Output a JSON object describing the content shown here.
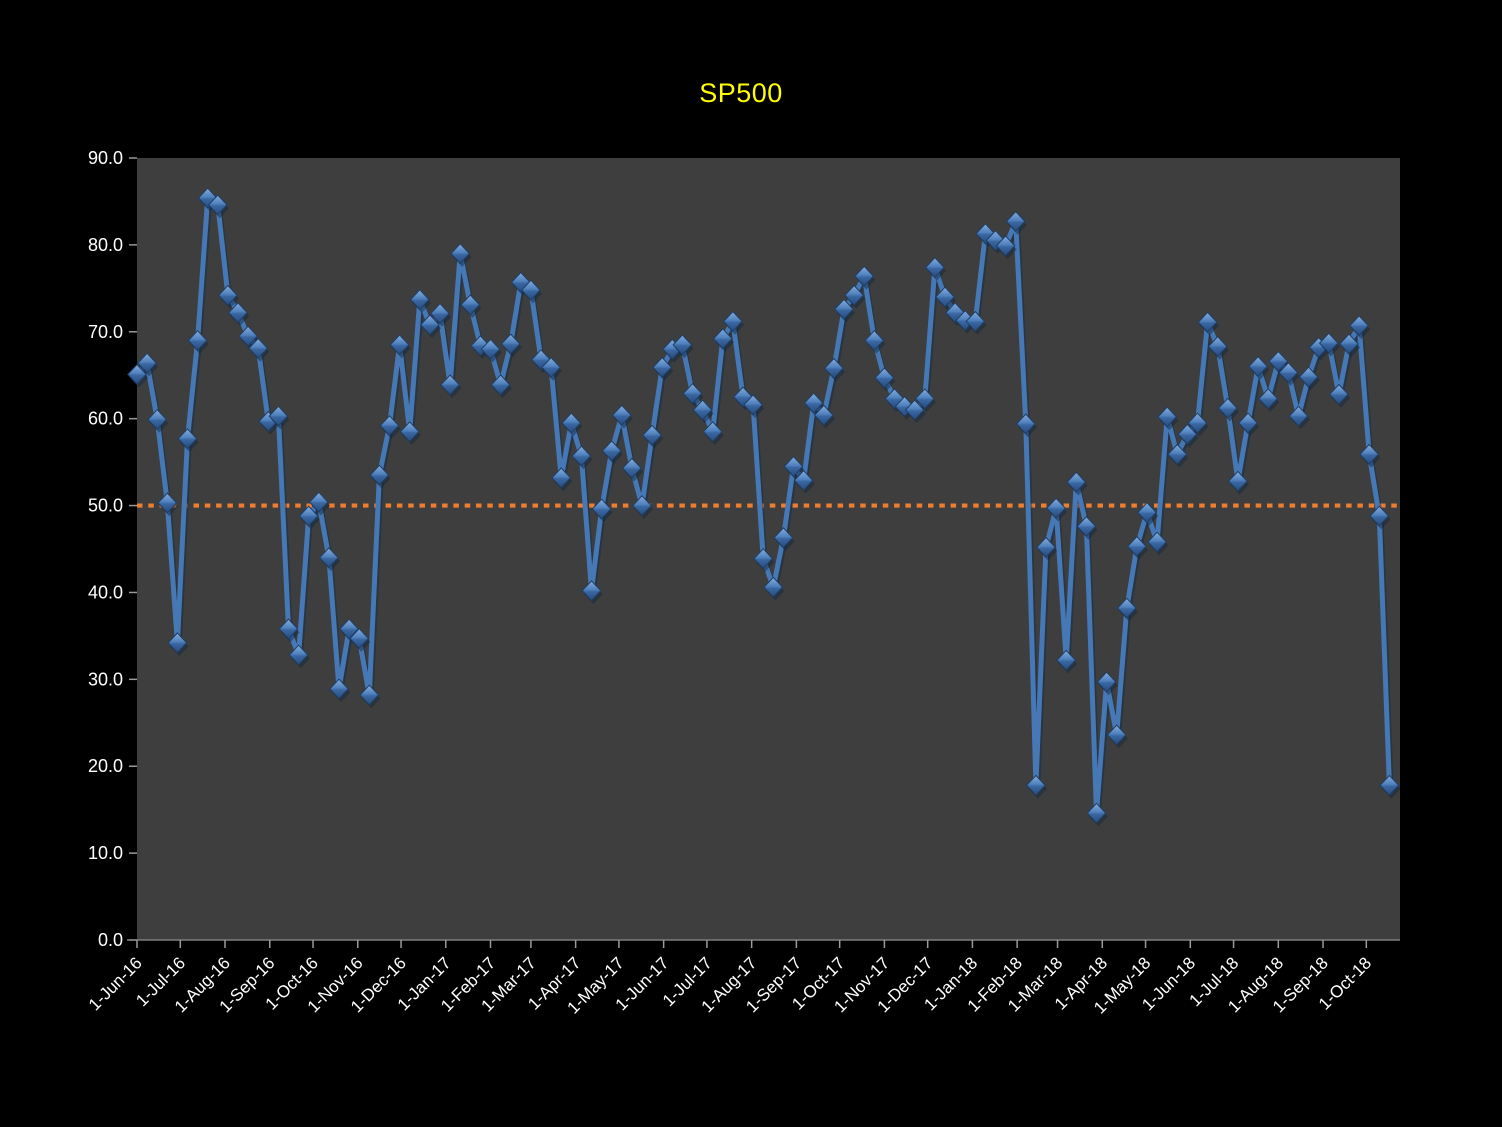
{
  "page": {
    "background": "#000000"
  },
  "chart_data": {
    "type": "line",
    "title": "SP500",
    "title_color": "#FFFF00",
    "series": [
      {
        "name": "SP500",
        "x": [
          "1-Jun-16",
          "8-Jun-16",
          "15-Jun-16",
          "22-Jun-16",
          "29-Jun-16",
          "6-Jul-16",
          "13-Jul-16",
          "20-Jul-16",
          "27-Jul-16",
          "3-Aug-16",
          "10-Aug-16",
          "17-Aug-16",
          "24-Aug-16",
          "31-Aug-16",
          "7-Sep-16",
          "14-Sep-16",
          "21-Sep-16",
          "28-Sep-16",
          "5-Oct-16",
          "12-Oct-16",
          "19-Oct-16",
          "26-Oct-16",
          "2-Nov-16",
          "9-Nov-16",
          "16-Nov-16",
          "23-Nov-16",
          "30-Nov-16",
          "7-Dec-16",
          "14-Dec-16",
          "21-Dec-16",
          "28-Dec-16",
          "4-Jan-17",
          "11-Jan-17",
          "18-Jan-17",
          "25-Jan-17",
          "1-Feb-17",
          "8-Feb-17",
          "15-Feb-17",
          "22-Feb-17",
          "1-Mar-17",
          "8-Mar-17",
          "15-Mar-17",
          "22-Mar-17",
          "29-Mar-17",
          "5-Apr-17",
          "12-Apr-17",
          "19-Apr-17",
          "26-Apr-17",
          "3-May-17",
          "10-May-17",
          "17-May-17",
          "24-May-17",
          "31-May-17",
          "7-Jun-17",
          "14-Jun-17",
          "21-Jun-17",
          "28-Jun-17",
          "5-Jul-17",
          "12-Jul-17",
          "19-Jul-17",
          "26-Jul-17",
          "2-Aug-17",
          "9-Aug-17",
          "16-Aug-17",
          "23-Aug-17",
          "30-Aug-17",
          "6-Sep-17",
          "13-Sep-17",
          "20-Sep-17",
          "27-Sep-17",
          "4-Oct-17",
          "11-Oct-17",
          "18-Oct-17",
          "25-Oct-17",
          "1-Nov-17",
          "8-Nov-17",
          "15-Nov-17",
          "22-Nov-17",
          "29-Nov-17",
          "6-Dec-17",
          "13-Dec-17",
          "20-Dec-17",
          "27-Dec-17",
          "3-Jan-18",
          "10-Jan-18",
          "17-Jan-18",
          "24-Jan-18",
          "31-Jan-18",
          "7-Feb-18",
          "14-Feb-18",
          "21-Feb-18",
          "28-Feb-18",
          "7-Mar-18",
          "14-Mar-18",
          "21-Mar-18",
          "28-Mar-18",
          "4-Apr-18",
          "11-Apr-18",
          "18-Apr-18",
          "25-Apr-18",
          "2-May-18",
          "9-May-18",
          "16-May-18",
          "23-May-18",
          "30-May-18",
          "6-Jun-18",
          "13-Jun-18",
          "20-Jun-18",
          "27-Jun-18",
          "4-Jul-18",
          "11-Jul-18",
          "18-Jul-18",
          "25-Jul-18",
          "1-Aug-18",
          "8-Aug-18",
          "15-Aug-18",
          "22-Aug-18",
          "29-Aug-18",
          "5-Sep-18",
          "12-Sep-18",
          "19-Sep-18",
          "26-Sep-18",
          "3-Oct-18",
          "10-Oct-18",
          "17-Oct-18"
        ],
        "values": [
          65.1,
          66.4,
          59.9,
          50.3,
          34.2,
          57.7,
          69.0,
          85.4,
          84.6,
          74.2,
          72.2,
          69.5,
          68.1,
          59.7,
          60.3,
          35.8,
          32.8,
          48.8,
          50.4,
          44.0,
          28.9,
          35.8,
          34.7,
          28.2,
          53.5,
          59.2,
          68.5,
          58.5,
          73.7,
          70.8,
          72.1,
          63.9,
          79.0,
          73.1,
          68.4,
          68.0,
          63.9,
          68.6,
          75.7,
          74.8,
          66.8,
          65.9,
          53.2,
          59.5,
          55.7,
          40.2,
          49.6,
          56.3,
          60.4,
          54.3,
          50.0,
          58.1,
          65.9,
          68.0,
          68.5,
          62.9,
          61.0,
          58.5,
          69.2,
          71.2,
          62.5,
          61.6,
          43.9,
          40.6,
          46.3,
          54.5,
          52.9,
          61.8,
          60.4,
          65.8,
          72.6,
          74.2,
          76.4,
          69.0,
          64.7,
          62.3,
          61.4,
          61.0,
          62.3,
          77.4,
          74.0,
          72.2,
          71.3,
          71.2,
          81.3,
          80.5,
          79.9,
          82.7,
          59.4,
          17.8,
          45.2,
          49.7,
          32.2,
          52.7,
          47.6,
          14.6,
          29.7,
          23.6,
          38.2,
          45.3,
          49.2,
          45.8,
          60.2,
          55.9,
          58.2,
          59.5,
          71.1,
          68.3,
          61.2,
          52.8,
          59.5,
          66.0,
          62.3,
          66.6,
          65.3,
          60.3,
          64.8,
          68.2,
          68.7,
          62.8,
          68.6,
          70.7,
          55.9,
          48.8,
          17.8
        ]
      }
    ],
    "x_tick_labels": [
      "1-Jun-16",
      "1-Jul-16",
      "1-Aug-16",
      "1-Sep-16",
      "1-Oct-16",
      "1-Nov-16",
      "1-Dec-16",
      "1-Jan-17",
      "1-Feb-17",
      "1-Mar-17",
      "1-Apr-17",
      "1-May-17",
      "1-Jun-17",
      "1-Jul-17",
      "1-Aug-17",
      "1-Sep-17",
      "1-Oct-17",
      "1-Nov-17",
      "1-Dec-17",
      "1-Jan-18",
      "1-Feb-18",
      "1-Mar-18",
      "1-Apr-18",
      "1-May-18",
      "1-Jun-18",
      "1-Jul-18",
      "1-Aug-18",
      "1-Sep-18",
      "1-Oct-18"
    ],
    "y_tick_labels": [
      "0.0",
      "10.0",
      "20.0",
      "30.0",
      "40.0",
      "50.0",
      "60.0",
      "70.0",
      "80.0",
      "90.0"
    ],
    "ylim": [
      0,
      90
    ],
    "reference_line": {
      "value": 50.0,
      "color": "#ED7D31",
      "style": "dotted"
    },
    "line_color": "#4678B6",
    "marker": "diamond-3d",
    "plot_background": "#3E3E3E",
    "page_background": "#000000",
    "axis_text_color": "#FFFFFF",
    "gridlines": false,
    "legend": "none"
  }
}
